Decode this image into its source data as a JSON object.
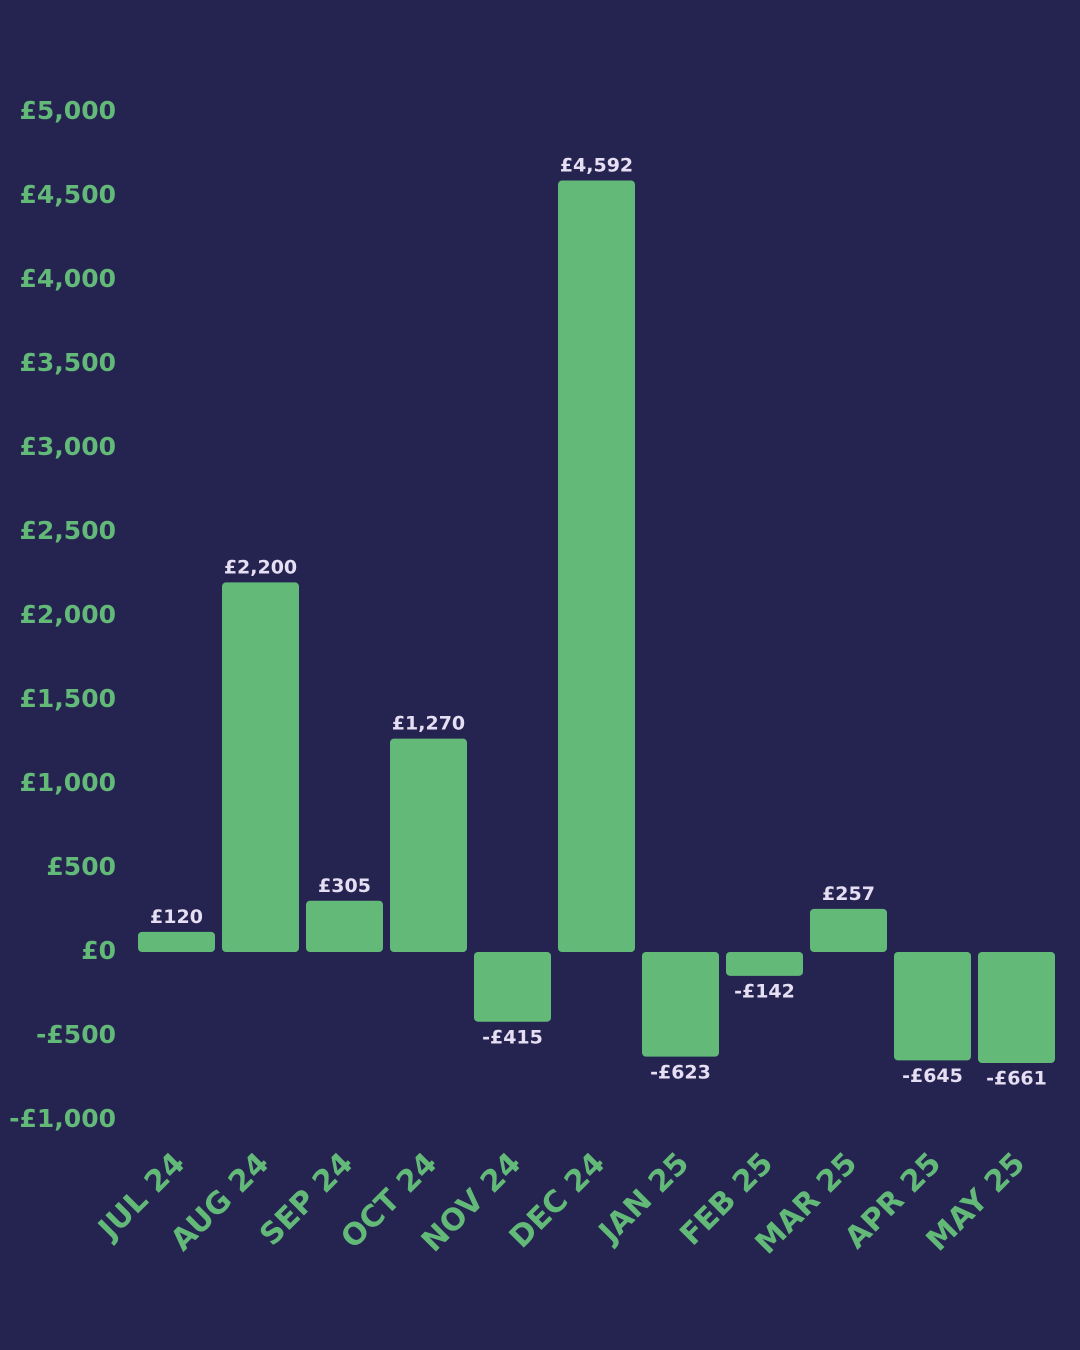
{
  "chart_data": {
    "type": "bar",
    "title": "",
    "xlabel": "",
    "ylabel": "",
    "categories": [
      "JUL 24",
      "AUG 24",
      "SEP 24",
      "OCT 24",
      "NOV 24",
      "DEC 24",
      "JAN 25",
      "FEB 25",
      "MAR 25",
      "APR 25",
      "MAY 25"
    ],
    "values": [
      120,
      2200,
      305,
      1270,
      -415,
      4592,
      -623,
      -142,
      257,
      -645,
      -661
    ],
    "value_labels": [
      "£120",
      "£2,200",
      "£305",
      "£1,270",
      "-£415",
      "£4,592",
      "-£623",
      "-£142",
      "£257",
      "-£645",
      "-£661"
    ],
    "y_ticks": [
      5000,
      4500,
      4000,
      3500,
      3000,
      2500,
      2000,
      1500,
      1000,
      500,
      0,
      -500,
      -1000
    ],
    "y_tick_labels": [
      "£5,000",
      "£4,500",
      "£4,000",
      "£3,500",
      "£3,000",
      "£2,500",
      "£2,000",
      "£1,500",
      "£1,000",
      "£500",
      "£0",
      "-£500",
      "-£1,000"
    ],
    "ylim": [
      -1000,
      5000
    ],
    "grid": false,
    "legend": "none",
    "colors": {
      "background": "#252350",
      "bar": "#62b978",
      "axis_text": "#62b978",
      "data_label": "#e6def2"
    }
  }
}
